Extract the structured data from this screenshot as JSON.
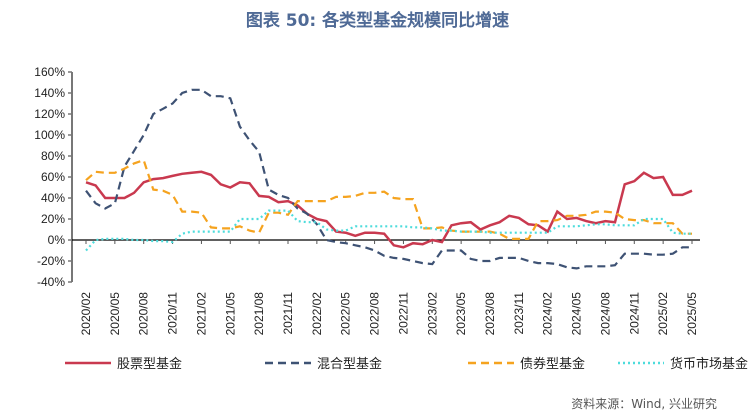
{
  "chart_data": {
    "type": "line",
    "title": "图表 50: 各类型基金规模同比增速",
    "source": "资料来源：Wind, 兴业研究",
    "ylim": [
      -40,
      160
    ],
    "yticks": [
      -40,
      -20,
      0,
      20,
      40,
      60,
      80,
      100,
      120,
      140,
      160
    ],
    "ytick_format": "%",
    "x": [
      "2020/02",
      "2020/03",
      "2020/04",
      "2020/05",
      "2020/06",
      "2020/07",
      "2020/08",
      "2020/09",
      "2020/10",
      "2020/11",
      "2020/12",
      "2021/01",
      "2021/02",
      "2021/03",
      "2021/04",
      "2021/05",
      "2021/06",
      "2021/07",
      "2021/08",
      "2021/09",
      "2021/10",
      "2021/11",
      "2021/12",
      "2022/01",
      "2022/02",
      "2022/03",
      "2022/04",
      "2022/05",
      "2022/06",
      "2022/07",
      "2022/08",
      "2022/09",
      "2022/10",
      "2022/11",
      "2022/12",
      "2023/01",
      "2023/02",
      "2023/03",
      "2023/04",
      "2023/05",
      "2023/06",
      "2023/07",
      "2023/08",
      "2023/09",
      "2023/10",
      "2023/11",
      "2023/12",
      "2024/01",
      "2024/02",
      "2024/03",
      "2024/04",
      "2024/05",
      "2024/06",
      "2024/07",
      "2024/08",
      "2024/09",
      "2024/10",
      "2024/11",
      "2024/12",
      "2025/01",
      "2025/02",
      "2025/03",
      "2025/04",
      "2025/05"
    ],
    "xtick_labels": [
      "2020/02",
      "2020/05",
      "2020/08",
      "2020/11",
      "2021/02",
      "2021/05",
      "2021/08",
      "2021/11",
      "2022/02",
      "2022/05",
      "2022/08",
      "2022/11",
      "2023/02",
      "2023/05",
      "2023/08",
      "2023/11",
      "2024/02",
      "2024/05",
      "2024/08",
      "2024/11",
      "2025/02",
      "2025/05"
    ],
    "grid": false,
    "legend": "bottom",
    "series": [
      {
        "name": "股票型基金",
        "color": "#c9394f",
        "style": "solid",
        "values": [
          55,
          52,
          40,
          40,
          40,
          45,
          55,
          58,
          59,
          61,
          63,
          64,
          65,
          62,
          53,
          50,
          55,
          54,
          42,
          41,
          36,
          37,
          33,
          25,
          20,
          18,
          8,
          7,
          4,
          7,
          7,
          6,
          -5,
          -7,
          -3,
          -4,
          0,
          -2,
          14,
          16,
          17,
          10,
          14,
          17,
          23,
          21,
          15,
          14,
          8,
          27,
          20,
          21,
          18,
          16,
          18,
          17,
          53,
          56,
          64,
          59,
          60,
          43,
          43,
          47
        ]
      },
      {
        "name": "混合型基金",
        "color": "#3e5274",
        "style": "dash",
        "values": [
          47,
          35,
          30,
          35,
          70,
          85,
          100,
          120,
          125,
          130,
          140,
          143,
          143,
          137,
          137,
          135,
          108,
          95,
          84,
          48,
          43,
          40,
          30,
          25,
          15,
          0,
          -2,
          -3,
          -5,
          -7,
          -10,
          -15,
          -17,
          -18,
          -20,
          -22,
          -23,
          -10,
          -10,
          -10,
          -18,
          -20,
          -20,
          -17,
          -17,
          -17,
          -20,
          -22,
          -22,
          -23,
          -26,
          -27,
          -25,
          -25,
          -25,
          -24,
          -13,
          -13,
          -13,
          -14,
          -14,
          -13,
          -7,
          -7
        ]
      },
      {
        "name": "债券型基金",
        "color": "#f5a31f",
        "style": "dash",
        "values": [
          57,
          65,
          64,
          64,
          68,
          73,
          76,
          48,
          47,
          43,
          27,
          27,
          26,
          12,
          11,
          11,
          13,
          9,
          7,
          26,
          26,
          24,
          37,
          37,
          37,
          37,
          41,
          41,
          42,
          45,
          45,
          46,
          40,
          39,
          39,
          11,
          11,
          12,
          9,
          8,
          8,
          8,
          8,
          6,
          1,
          1,
          1,
          18,
          18,
          19,
          23,
          23,
          24,
          27,
          27,
          26,
          20,
          19,
          19,
          16,
          16,
          16,
          6,
          6
        ]
      },
      {
        "name": "货币市场基金",
        "color": "#4ddcdc",
        "style": "dot",
        "values": [
          -10,
          0,
          1,
          1,
          1,
          0,
          0,
          -1,
          -1,
          -2,
          6,
          8,
          8,
          8,
          8,
          8,
          20,
          20,
          20,
          28,
          28,
          28,
          18,
          17,
          17,
          10,
          9,
          9,
          13,
          13,
          13,
          13,
          13,
          13,
          12,
          12,
          11,
          9,
          9,
          8,
          8,
          8,
          7,
          7,
          7,
          7,
          7,
          7,
          7,
          13,
          13,
          13,
          14,
          15,
          15,
          14,
          14,
          14,
          20,
          20,
          20,
          7,
          6,
          6
        ]
      }
    ]
  }
}
